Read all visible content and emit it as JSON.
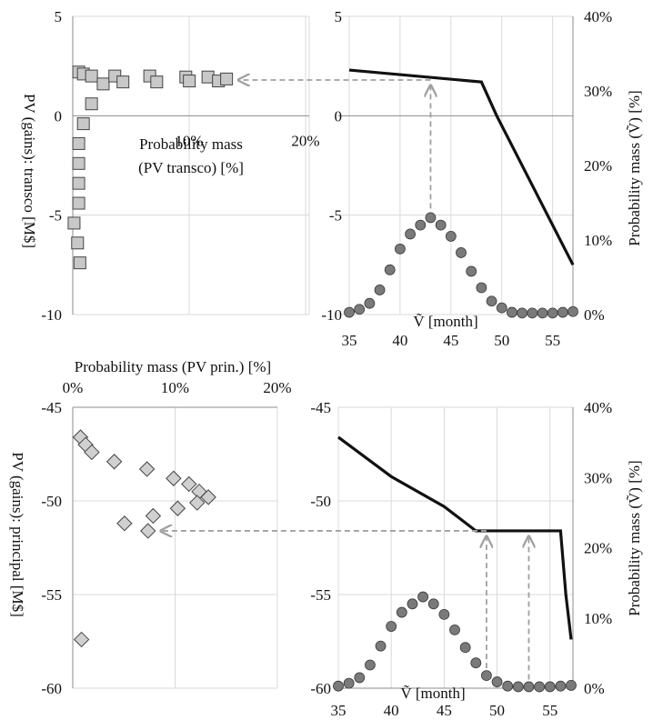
{
  "colors": {
    "grid": "#d9d9d9",
    "axis": "#8c8c8c",
    "line": "#111111",
    "marker_circle": "#7a7a7a",
    "marker_square": "#c8c8c8",
    "marker_diamond": "#d0d0d0",
    "arrow": "#a0a0a0"
  },
  "chart_data": [
    {
      "id": "top-left",
      "type": "scatter",
      "marker": "square",
      "xlabel_line1": "Probability mass",
      "xlabel_line2": "(PV transco) [%]",
      "ylabel": "PV (gains): transco [M$]",
      "xlim": [
        0,
        20
      ],
      "ylim": [
        -10,
        5
      ],
      "x_ticks": [
        10,
        20
      ],
      "x_tick_labels": [
        "10%",
        "20%"
      ],
      "y_ticks": [
        5,
        0,
        -5,
        -10
      ],
      "y_tick_labels": [
        "5",
        "0",
        "-5",
        "-10"
      ],
      "points": [
        {
          "x": 0.2,
          "y": 2.2
        },
        {
          "x": 0.6,
          "y": 2.1
        },
        {
          "x": 1.3,
          "y": 2.0
        },
        {
          "x": 2.3,
          "y": 1.6
        },
        {
          "x": 3.3,
          "y": 2.0
        },
        {
          "x": 4.0,
          "y": 1.7
        },
        {
          "x": 6.3,
          "y": 2.0
        },
        {
          "x": 6.9,
          "y": 1.7
        },
        {
          "x": 9.4,
          "y": 1.95
        },
        {
          "x": 9.7,
          "y": 1.75
        },
        {
          "x": 11.3,
          "y": 1.95
        },
        {
          "x": 12.2,
          "y": 1.75
        },
        {
          "x": 12.9,
          "y": 1.85
        },
        {
          "x": 1.3,
          "y": 0.6
        },
        {
          "x": 0.6,
          "y": -0.4
        },
        {
          "x": 0.2,
          "y": -1.4
        },
        {
          "x": 0.2,
          "y": -2.4
        },
        {
          "x": 0.2,
          "y": -3.4
        },
        {
          "x": 0.2,
          "y": -4.4
        },
        {
          "x": -0.2,
          "y": -5.4
        },
        {
          "x": 0.1,
          "y": -6.4
        },
        {
          "x": 0.3,
          "y": -7.4
        }
      ]
    },
    {
      "id": "top-right",
      "type": "line",
      "xlabel": "Ṽ [month]",
      "ylabel_right": "Probability mass (Ṽ) [%]",
      "xlim": [
        35,
        57
      ],
      "ylim_left": [
        -10,
        5
      ],
      "ylim_right": [
        0,
        40
      ],
      "x_ticks": [
        35,
        40,
        45,
        50,
        55
      ],
      "x_tick_labels": [
        "35",
        "40",
        "45",
        "50",
        "55"
      ],
      "y_ticks_left": [
        5,
        0,
        -5,
        -10
      ],
      "y_tick_labels_left": [
        "5",
        "0",
        "-5",
        "-10"
      ],
      "y_ticks_right": [
        40,
        30,
        20,
        10,
        0
      ],
      "y_tick_labels_right": [
        "40%",
        "30%",
        "20%",
        "10%",
        "0%"
      ],
      "pv_line": [
        {
          "x": 35,
          "y": 2.3
        },
        {
          "x": 48,
          "y": 1.7
        },
        {
          "x": 49.5,
          "y": 0.0
        },
        {
          "x": 57,
          "y": -7.5
        }
      ],
      "probability_mass": [
        {
          "x": 35,
          "y": 0.3
        },
        {
          "x": 36,
          "y": 0.7
        },
        {
          "x": 37,
          "y": 1.5
        },
        {
          "x": 38,
          "y": 3.3
        },
        {
          "x": 39,
          "y": 6.0
        },
        {
          "x": 40,
          "y": 8.8
        },
        {
          "x": 41,
          "y": 10.8
        },
        {
          "x": 42,
          "y": 12.0
        },
        {
          "x": 43,
          "y": 13.0
        },
        {
          "x": 44,
          "y": 12.0
        },
        {
          "x": 45,
          "y": 10.5
        },
        {
          "x": 46,
          "y": 8.3
        },
        {
          "x": 47,
          "y": 5.8
        },
        {
          "x": 48,
          "y": 3.6
        },
        {
          "x": 49,
          "y": 1.8
        },
        {
          "x": 50,
          "y": 0.9
        },
        {
          "x": 51,
          "y": 0.3
        },
        {
          "x": 52,
          "y": 0.2
        },
        {
          "x": 53,
          "y": 0.2
        },
        {
          "x": 54,
          "y": 0.2
        },
        {
          "x": 55,
          "y": 0.2
        },
        {
          "x": 56,
          "y": 0.3
        },
        {
          "x": 57,
          "y": 0.4
        }
      ],
      "arrow_up_at_x": 43,
      "arrow_to_pv": 1.8
    },
    {
      "id": "bottom-left",
      "type": "scatter",
      "marker": "diamond",
      "xlabel": "Probability mass (PV prin.) [%]",
      "ylabel": "PV (gains): principal [M$]",
      "xlim": [
        0,
        20
      ],
      "ylim": [
        -60,
        -45
      ],
      "x_ticks": [
        0,
        10,
        20
      ],
      "x_tick_labels": [
        "0%",
        "10%",
        "20%"
      ],
      "y_ticks": [
        -45,
        -50,
        -55,
        -60
      ],
      "y_tick_labels": [
        "-45",
        "-50",
        "-55",
        "-60"
      ],
      "points": [
        {
          "x": 0.4,
          "y": -46.6
        },
        {
          "x": 0.9,
          "y": -47.0
        },
        {
          "x": 1.5,
          "y": -47.4
        },
        {
          "x": 3.7,
          "y": -47.9
        },
        {
          "x": 6.9,
          "y": -48.3
        },
        {
          "x": 9.5,
          "y": -48.8
        },
        {
          "x": 11.0,
          "y": -49.1
        },
        {
          "x": 12.0,
          "y": -49.5
        },
        {
          "x": 12.9,
          "y": -49.8
        },
        {
          "x": 11.8,
          "y": -50.1
        },
        {
          "x": 9.9,
          "y": -50.4
        },
        {
          "x": 7.5,
          "y": -50.8
        },
        {
          "x": 4.7,
          "y": -51.2
        },
        {
          "x": 7.0,
          "y": -51.6
        },
        {
          "x": 0.5,
          "y": -57.4
        }
      ]
    },
    {
      "id": "bottom-right",
      "type": "line",
      "xlabel": "Ṽ [month]",
      "ylabel_right": "Probability mass (Ṽ) [%]",
      "xlim": [
        35,
        57
      ],
      "ylim_left": [
        -60,
        -45
      ],
      "ylim_right": [
        0,
        40
      ],
      "x_ticks": [
        35,
        40,
        45,
        50,
        55
      ],
      "x_tick_labels": [
        "35",
        "40",
        "45",
        "50",
        "55"
      ],
      "y_ticks_left": [
        -45,
        -50,
        -55,
        -60
      ],
      "y_tick_labels_left": [
        "-45",
        "-50",
        "-55",
        "-60"
      ],
      "y_ticks_right": [
        40,
        30,
        20,
        10,
        0
      ],
      "y_tick_labels_right": [
        "40%",
        "30%",
        "20%",
        "10%",
        "0%"
      ],
      "pv_line": [
        {
          "x": 35,
          "y": -46.6
        },
        {
          "x": 40,
          "y": -48.7
        },
        {
          "x": 45,
          "y": -50.3
        },
        {
          "x": 48,
          "y": -51.6
        },
        {
          "x": 56,
          "y": -51.6
        },
        {
          "x": 56.5,
          "y": -55.0
        },
        {
          "x": 57,
          "y": -57.4
        }
      ],
      "probability_mass": [
        {
          "x": 35,
          "y": 0.3
        },
        {
          "x": 36,
          "y": 0.7
        },
        {
          "x": 37,
          "y": 1.5
        },
        {
          "x": 38,
          "y": 3.3
        },
        {
          "x": 39,
          "y": 6.0
        },
        {
          "x": 40,
          "y": 8.8
        },
        {
          "x": 41,
          "y": 10.8
        },
        {
          "x": 42,
          "y": 12.0
        },
        {
          "x": 43,
          "y": 13.0
        },
        {
          "x": 44,
          "y": 12.0
        },
        {
          "x": 45,
          "y": 10.5
        },
        {
          "x": 46,
          "y": 8.3
        },
        {
          "x": 47,
          "y": 5.8
        },
        {
          "x": 48,
          "y": 3.6
        },
        {
          "x": 49,
          "y": 1.8
        },
        {
          "x": 50,
          "y": 0.9
        },
        {
          "x": 51,
          "y": 0.3
        },
        {
          "x": 52,
          "y": 0.2
        },
        {
          "x": 53,
          "y": 0.2
        },
        {
          "x": 54,
          "y": 0.2
        },
        {
          "x": 55,
          "y": 0.2
        },
        {
          "x": 56,
          "y": 0.3
        },
        {
          "x": 57,
          "y": 0.4
        }
      ],
      "arrows_up_at_x": [
        49,
        53
      ],
      "arrow_to_pv": -51.6
    }
  ]
}
